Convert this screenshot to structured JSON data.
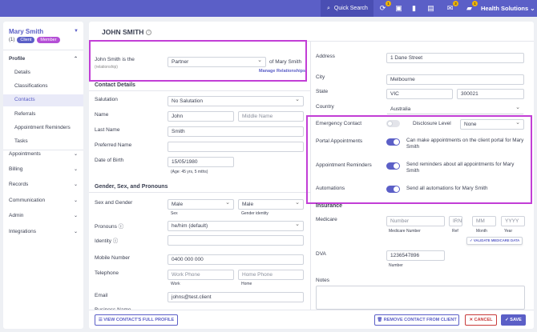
{
  "topbar": {
    "quick_search": "Quick Search",
    "icons": [
      {
        "name": "sync-icon",
        "glyph": "⟳",
        "badge": "1"
      },
      {
        "name": "contact-card-icon",
        "glyph": "▣",
        "badge": ""
      },
      {
        "name": "bookmark-icon",
        "glyph": "▮",
        "badge": ""
      },
      {
        "name": "clipboard-icon",
        "glyph": "▤",
        "badge": ""
      },
      {
        "name": "notification-icon",
        "glyph": "✉",
        "badge": "3"
      },
      {
        "name": "message-icon",
        "glyph": "▰",
        "badge": "1"
      }
    ],
    "org": "Health Solutions"
  },
  "sidebar": {
    "client_name": "Mary Smith",
    "count": "(1)",
    "tag_client": "Client",
    "tag_member": "Member",
    "profile": "Profile",
    "profile_items": [
      "Details",
      "Classifications",
      "Contacts",
      "Referrals",
      "Appointment Reminders",
      "Tasks"
    ],
    "sections": [
      "Appointments",
      "Billing",
      "Records",
      "Communication",
      "Admin",
      "Integrations"
    ]
  },
  "main": {
    "title": "JOHN SMITH",
    "relationship": {
      "label": "John Smith is the",
      "sublabel": "(relationship)",
      "value": "Partner",
      "suffix": "of Mary Smith",
      "manage": "Manage Relationships"
    },
    "contact_details": {
      "heading": "Contact Details",
      "salutation_label": "Salutation",
      "salutation_value": "No Salutation",
      "name_label": "Name",
      "first_name": "John",
      "middle_name_placeholder": "Middle Name",
      "last_name_label": "Last Name",
      "last_name": "Smith",
      "preferred_name_label": "Preferred Name",
      "dob_label": "Date of Birth",
      "dob_value": "15/05/1980",
      "age": "(Age: 45 yrs, 5 mths)"
    },
    "gender": {
      "heading": "Gender, Sex, and Pronouns",
      "sex_gender_label": "Sex and Gender",
      "sex_value": "Male",
      "sex_caption": "Sex",
      "gender_value": "Male",
      "gender_caption": "Gender identity",
      "pronouns_label": "Pronouns",
      "pronouns_value": "he/him (default)",
      "identity_label": "Identity"
    },
    "phones": {
      "mobile_label": "Mobile Number",
      "mobile_value": "0400 000 000",
      "telephone_label": "Telephone",
      "work_placeholder": "Work Phone",
      "work_caption": "Work",
      "home_placeholder": "Home Phone",
      "home_caption": "Home",
      "email_label": "Email",
      "email_value": "johns@test.client",
      "business_label": "Business Name"
    },
    "address": {
      "address_label": "Address",
      "address_value": "1 Dane Street",
      "city_label": "City",
      "city_value": "Melbourne",
      "state_label": "State",
      "state_value": "VIC",
      "postcode_value": "300021",
      "country_label": "Country",
      "country_value": "Australia"
    },
    "settings": {
      "emergency_label": "Emergency Contact",
      "emergency_on": false,
      "disclosure_label": "Disclosure Level",
      "disclosure_value": "None",
      "portal_label": "Portal Appointments",
      "portal_desc": "Can make appointments on the client portal for Mary Smith",
      "portal_on": true,
      "reminders_label": "Appointment Reminders",
      "reminders_desc": "Send reminders about all appointments for Mary Smith",
      "reminders_on": true,
      "automations_label": "Automations",
      "automations_desc": "Send all automations for Mary Smith",
      "automations_on": true
    },
    "insurance": {
      "heading": "Insurance",
      "medicare_label": "Medicare",
      "number_placeholder": "Number",
      "number_caption": "Medicare Number",
      "irn_placeholder": "IRN",
      "ref_caption": "Ref",
      "mm_placeholder": "MM",
      "month_caption": "Month",
      "yyyy_placeholder": "YYYY",
      "year_caption": "Year",
      "validate": "VALIDATE MEDICARE DATA",
      "dva_label": "DVA",
      "dva_value": "1236547896",
      "dva_caption": "Number",
      "notes_label": "Notes"
    },
    "footer": {
      "view_profile": "VIEW CONTACT'S FULL PROFILE",
      "remove": "REMOVE CONTACT FROM CLIENT",
      "cancel": "CANCEL",
      "save": "SAVE"
    },
    "colors": {
      "accent": "#5b5fc7",
      "highlight": "#c23ed6",
      "danger": "#c83a3a"
    }
  }
}
